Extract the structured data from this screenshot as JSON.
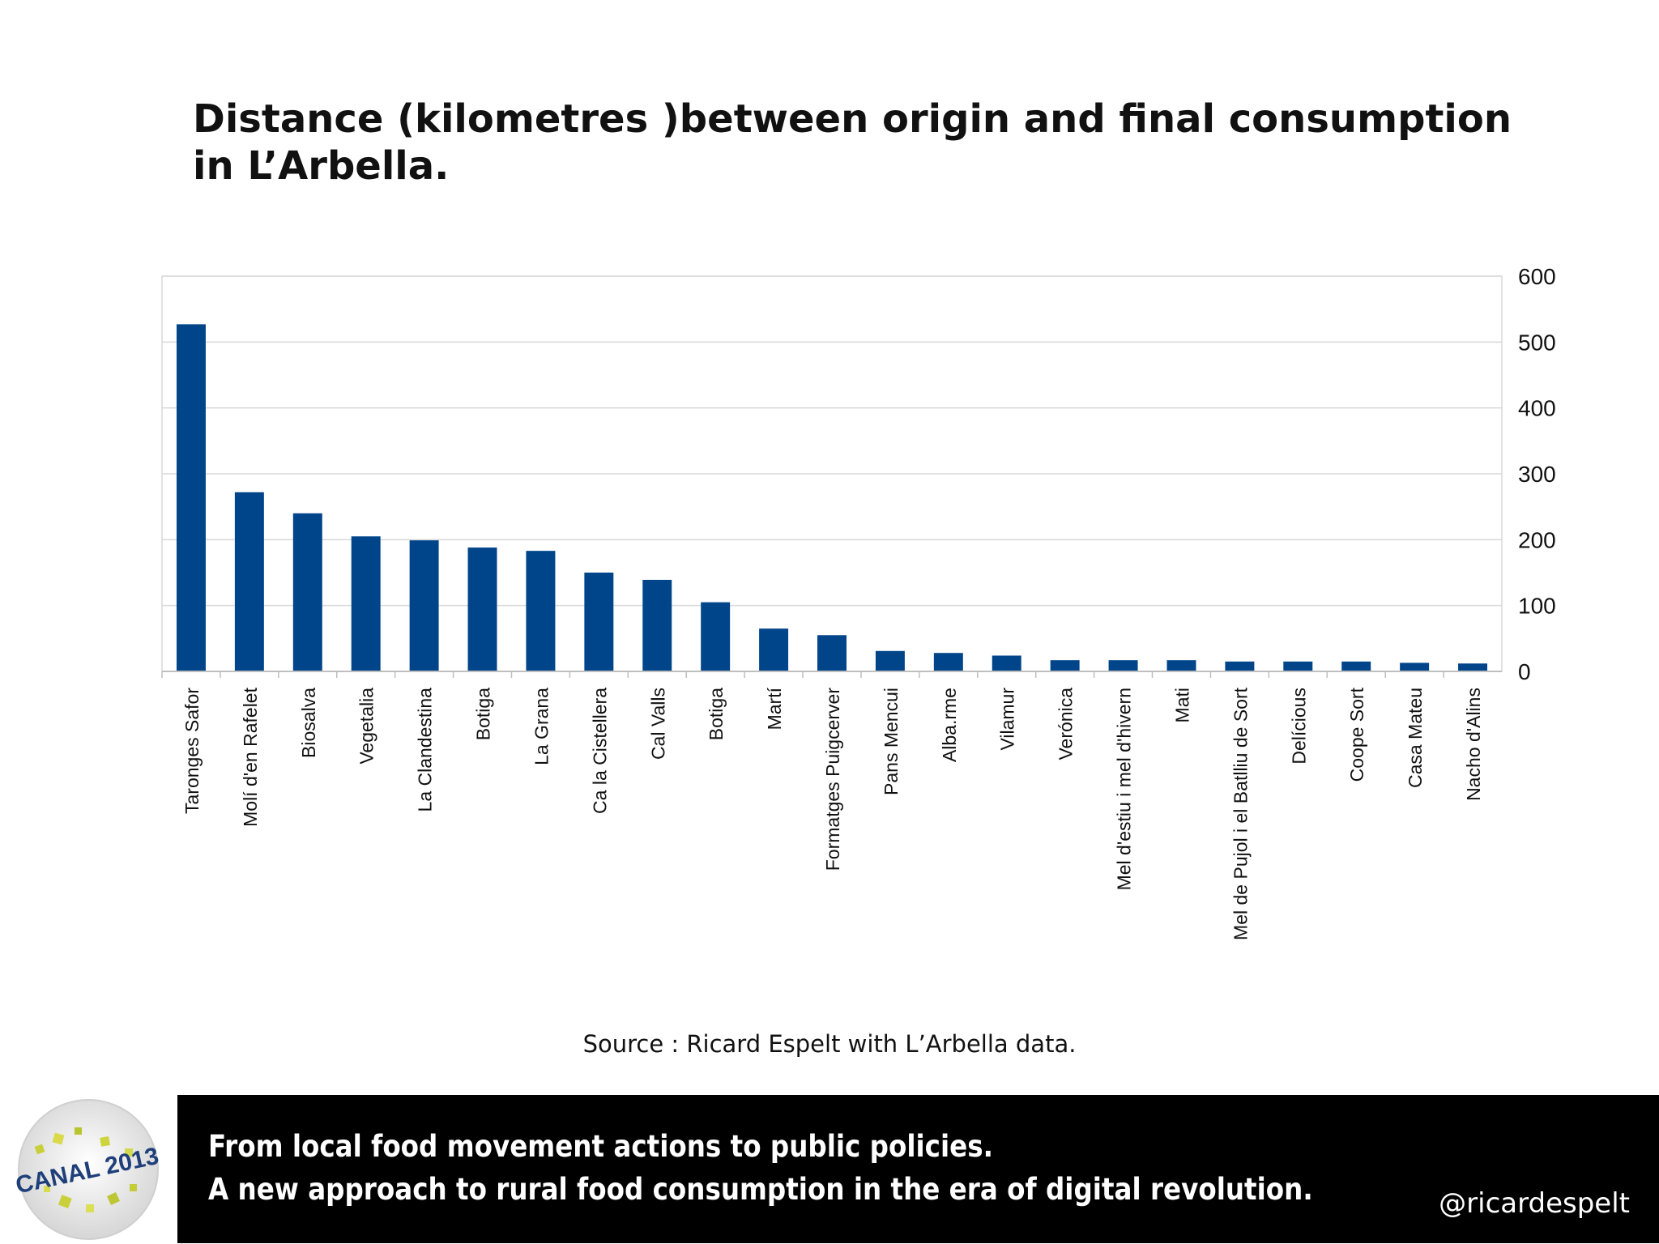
{
  "title": {
    "line1": "Distance (kilometres )between origin and final consumption",
    "line2": "in L’Arbella."
  },
  "source": "Source :  Ricard Espelt with L’Arbella data.",
  "footer": {
    "line1": "From local food movement actions to public policies.",
    "line2": "A new approach to rural food consumption in the era of digital revolution.",
    "handle": "@ricardespelt"
  },
  "logo": {
    "text": "CANAL 2013",
    "icon": "canal-2013-logo-icon"
  },
  "colors": {
    "bar": "#00458a",
    "footer_bg": "#000000",
    "grid": "#d9d9d9"
  },
  "chart_data": {
    "type": "bar",
    "title": "Distance (kilometres )between origin and final consumption in L’Arbella.",
    "xlabel": "",
    "ylabel": "",
    "categories": [
      "Taronges Safor",
      "Molí d'en Rafelet",
      "Biosalva",
      "Vegetalia",
      "La Clandestina",
      "Botiga",
      "La Grana",
      "Ca la Cistellera",
      "Cal Valls",
      "Botiga",
      "Martí",
      "Formatges Puigcerver",
      "Pans Mencui",
      "Alba.rme",
      "Vilamur",
      "Verónica",
      "Mel d'estiu i mel d'hivern",
      "Mati",
      "Mel de Pujol i el Batlliu de Sort",
      "Delícious",
      "Coope Sort",
      "Casa Mateu",
      "Nacho d'Alins"
    ],
    "values": [
      527,
      272,
      240,
      205,
      199,
      188,
      183,
      150,
      139,
      105,
      65,
      55,
      31,
      28,
      24,
      17,
      17,
      17,
      15,
      15,
      15,
      13,
      12
    ],
    "ylim": [
      0,
      600
    ],
    "yticks": [
      0,
      100,
      200,
      300,
      400,
      500,
      600
    ],
    "y_axis_position": "right",
    "grid": true,
    "legend": "none"
  }
}
